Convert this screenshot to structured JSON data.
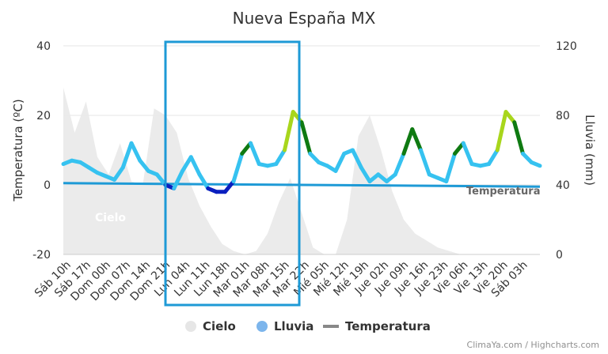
{
  "chart_data": {
    "type": "line",
    "title": "Nueva España MX",
    "y_left": {
      "label": "Temperatura (ºC)",
      "ticks": [
        40,
        20,
        0,
        -20
      ],
      "range": [
        -20,
        40
      ]
    },
    "y_right": {
      "label": "Lluvia (mm)",
      "ticks": [
        120,
        80,
        40,
        0
      ],
      "range": [
        0,
        120
      ]
    },
    "x_tick_labels": [
      "Sáb 10h",
      "Sáb 17h",
      "Dom 00h",
      "Dom 07h",
      "Dom 14h",
      "Dom 21h",
      "Lun 04h",
      "Lun 11h",
      "Lun 18h",
      "Mar 01h",
      "Mar 08h",
      "Mar 15h",
      "Mar 22h",
      "Mié 05h",
      "Mié 12h",
      "Mié 19h",
      "Jue 02h",
      "Jue 09h",
      "Jue 16h",
      "Jue 23h",
      "Vie 06h",
      "Vie 13h",
      "Vie 20h",
      "Sáb 03h"
    ],
    "x_range_hours": [
      0,
      168
    ],
    "area_label": "Cielo",
    "line_label": "Temperatura",
    "series": [
      {
        "name": "Temperatura",
        "x_hours": [
          0,
          3,
          6,
          9,
          12,
          15,
          18,
          21,
          24,
          27,
          30,
          33,
          36,
          39,
          42,
          45,
          48,
          51,
          54,
          57,
          60,
          63,
          66,
          69,
          72,
          75,
          78,
          81,
          84,
          87,
          90,
          93,
          96,
          99,
          102,
          105,
          108,
          111,
          114,
          117,
          120,
          123,
          126,
          129,
          132,
          135,
          138,
          141,
          144,
          147,
          150,
          153,
          156,
          159,
          162,
          165,
          168
        ],
        "values": [
          6,
          7,
          6.5,
          5,
          3.5,
          2.5,
          1.5,
          5,
          12,
          7,
          4,
          3,
          0,
          -1,
          4,
          8,
          3,
          -1,
          -2,
          -2,
          1,
          9,
          12,
          6,
          5.5,
          6,
          10,
          21,
          18,
          9,
          6.5,
          5.5,
          4,
          9,
          10,
          5,
          1,
          3,
          1,
          3,
          9,
          16,
          10,
          3,
          2,
          1,
          9,
          12,
          6,
          5.5,
          6,
          10,
          21,
          18,
          9,
          6.5,
          5.5
        ]
      },
      {
        "name": "Lluvia",
        "x_hours": [
          0,
          168
        ],
        "values": [
          41,
          39
        ]
      },
      {
        "name": "Cielo",
        "x_hours": [
          0,
          4,
          8,
          12,
          16,
          20,
          24,
          28,
          32,
          36,
          40,
          44,
          48,
          52,
          56,
          60,
          64,
          68,
          72,
          76,
          80,
          84,
          88,
          92,
          96,
          100,
          104,
          108,
          112,
          116,
          120,
          124,
          128,
          132,
          136,
          140,
          144,
          148,
          152,
          156,
          160,
          164,
          168
        ],
        "values": [
          28,
          15,
          24,
          8,
          3,
          12,
          1,
          0,
          22,
          20,
          15,
          2,
          -6,
          -12,
          -17,
          -19,
          -20,
          -19,
          -14,
          -5,
          2,
          -8,
          -18,
          -20,
          -20,
          -10,
          14,
          20,
          10,
          -2,
          -10,
          -14,
          -16,
          -18,
          -19,
          -20,
          -20,
          -20,
          -20,
          -20,
          -20,
          -20,
          -20
        ]
      }
    ],
    "color_bands": [
      {
        "max": 0,
        "color": "#0a1fbf"
      },
      {
        "max": 10,
        "color": "#36c2f0"
      },
      {
        "max": 15,
        "color": "#0f7a12"
      },
      {
        "max": 20,
        "color": "#a8d61c"
      },
      {
        "max": 100,
        "color": "#f07b14"
      }
    ],
    "legend": [
      {
        "label": "Cielo",
        "color": "#e6e6e6"
      },
      {
        "label": "Lluvia",
        "color": "#7cb5ec"
      },
      {
        "label": "Temperatura",
        "color": "#888888"
      }
    ],
    "grid": true,
    "credits": "ClimaYa.com / Highcharts.com"
  }
}
